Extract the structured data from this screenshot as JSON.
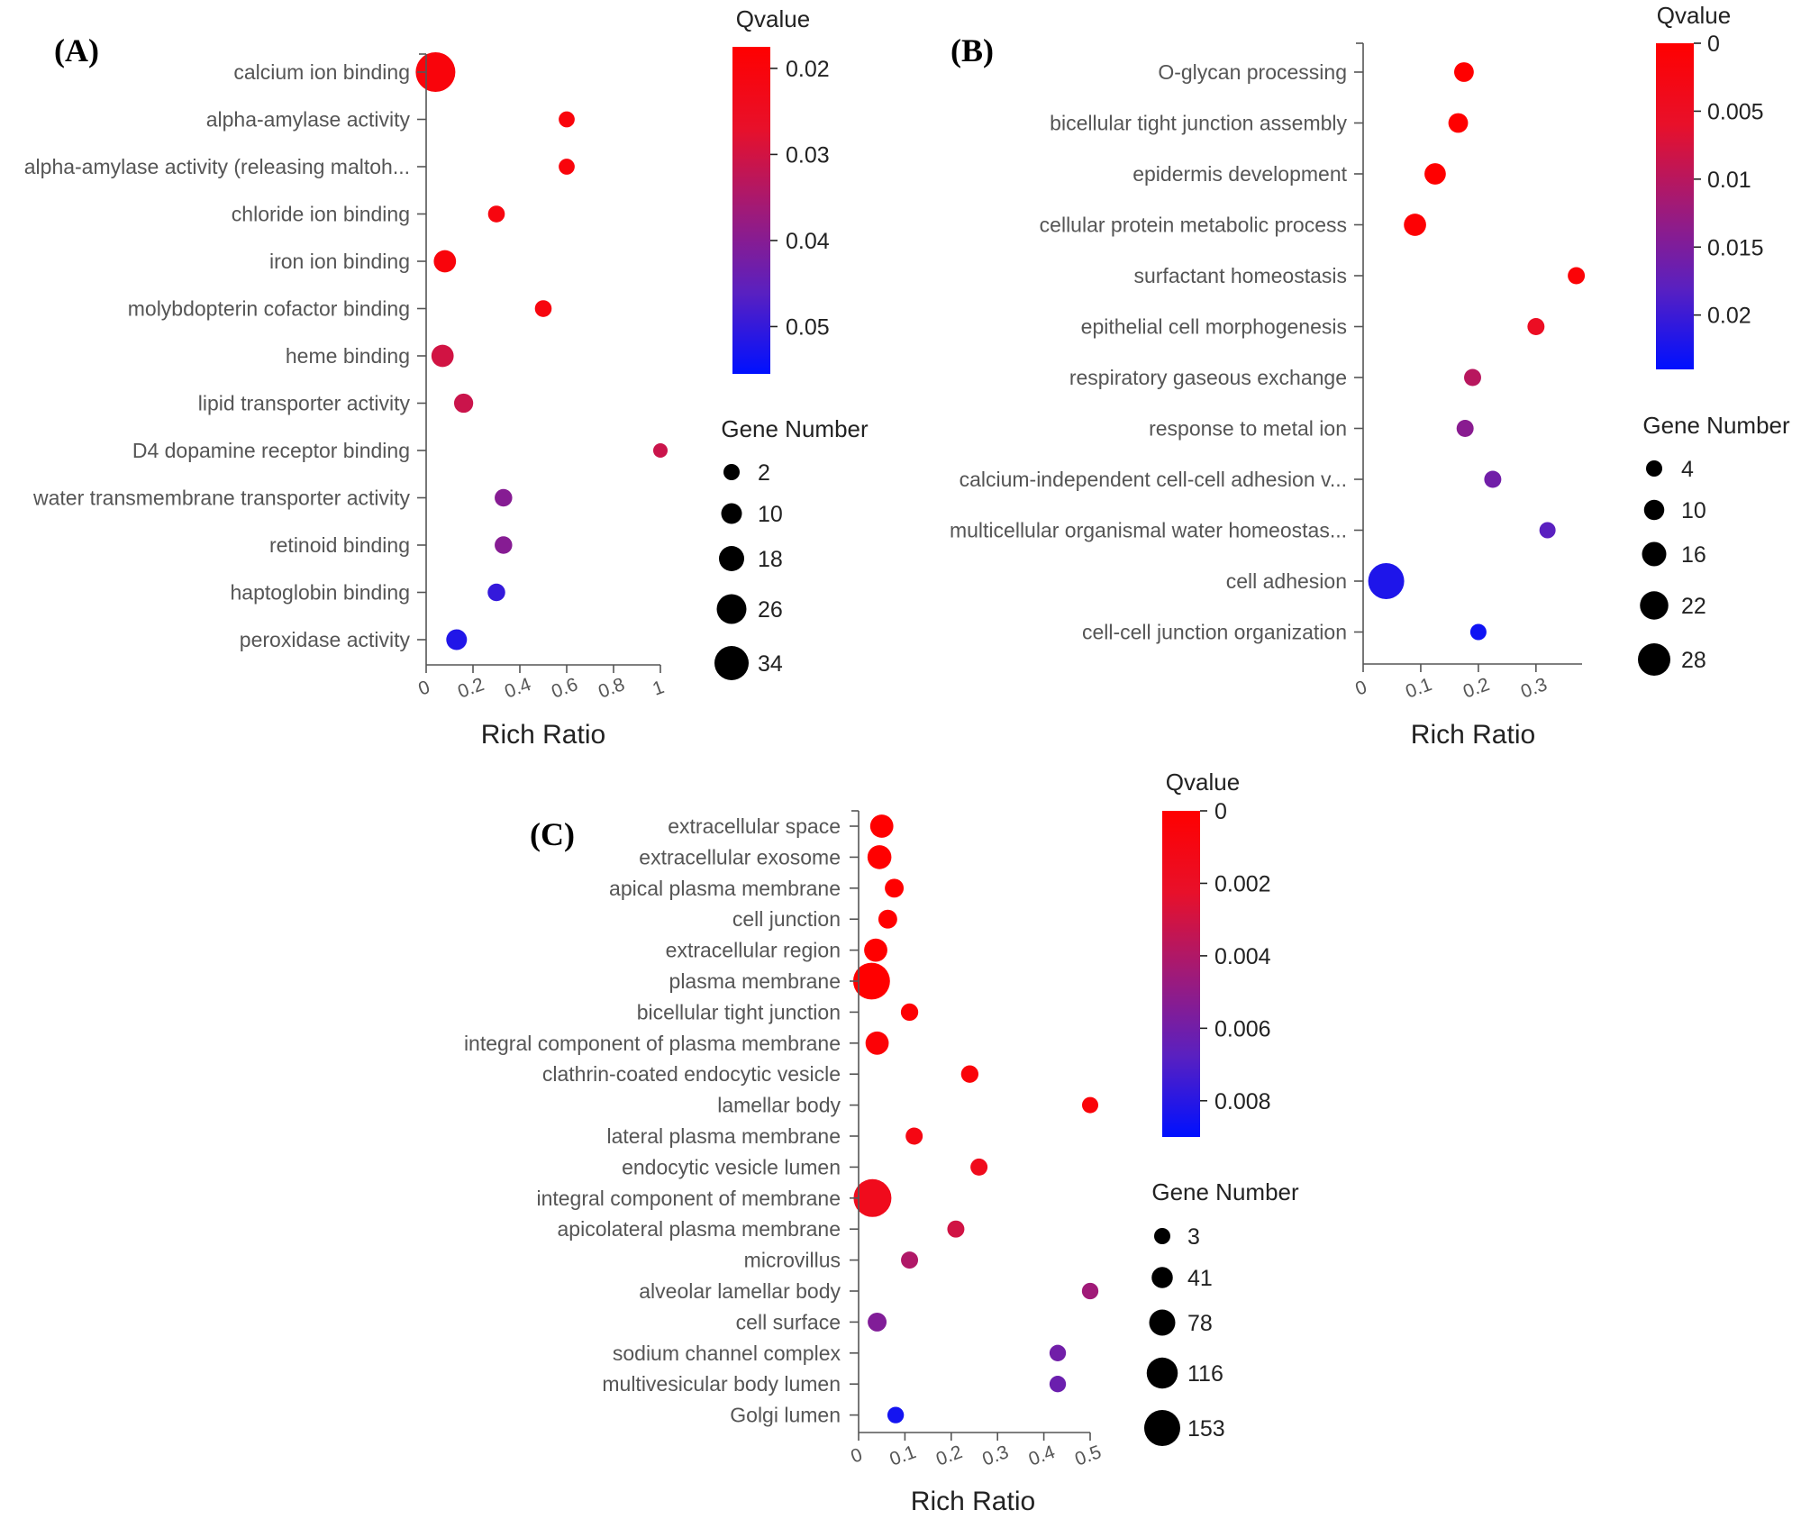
{
  "chart_data": [
    {
      "panel": "(A)",
      "type": "scatter",
      "subtype": "bubble",
      "xlabel": "Rich Ratio",
      "xlim": [
        0,
        1
      ],
      "xticks": [
        "0",
        "0.2",
        "0.4",
        "0.6",
        "0.8",
        "1"
      ],
      "categories": [
        "calcium ion binding",
        "alpha-amylase activity",
        "alpha-amylase activity (releasing maltoh...",
        "chloride ion binding",
        "iron ion binding",
        "molybdopterin cofactor binding",
        "heme binding",
        "lipid transporter activity",
        "D4 dopamine receptor binding",
        "water transmembrane transporter activity",
        "retinoid binding",
        "haptoglobin binding",
        "peroxidase activity"
      ],
      "rich_ratio": [
        0.04,
        0.6,
        0.6,
        0.3,
        0.08,
        0.5,
        0.07,
        0.16,
        1.0,
        0.33,
        0.33,
        0.3,
        0.13
      ],
      "gene_number": [
        34,
        4,
        4,
        5,
        12,
        5,
        12,
        8,
        2,
        6,
        6,
        6,
        10
      ],
      "qvalue": [
        0.02,
        0.02,
        0.02,
        0.021,
        0.02,
        0.021,
        0.03,
        0.031,
        0.031,
        0.04,
        0.04,
        0.05,
        0.052
      ],
      "color_legend": {
        "title": "Qvalue",
        "ticks": [
          "0.02",
          "0.03",
          "0.04",
          "0.05"
        ],
        "range": [
          0.0175,
          0.0555
        ],
        "high_color": "#ff0000",
        "low_color": "#0000ff"
      },
      "size_legend": {
        "title": "Gene Number",
        "ticks": [
          "2",
          "10",
          "18",
          "26",
          "34"
        ]
      }
    },
    {
      "panel": "(B)",
      "type": "scatter",
      "subtype": "bubble",
      "xlabel": "Rich Ratio",
      "xlim": [
        0,
        0.38
      ],
      "xticks": [
        "0",
        "0.1",
        "0.2",
        "0.3"
      ],
      "categories": [
        "O-glycan processing",
        "bicellular tight junction assembly",
        "epidermis development",
        "cellular protein metabolic process",
        "surfactant homeostasis",
        "epithelial cell morphogenesis",
        "respiratory gaseous exchange",
        "response to metal ion",
        "calcium-independent cell-cell adhesion v...",
        "multicellular organismal water homeostas...",
        "cell adhesion",
        "cell-cell junction organization"
      ],
      "rich_ratio": [
        0.175,
        0.165,
        0.125,
        0.09,
        0.37,
        0.3,
        0.19,
        0.177,
        0.225,
        0.32,
        0.04,
        0.2
      ],
      "gene_number": [
        9,
        9,
        11,
        12,
        6,
        6,
        6,
        6,
        6,
        5,
        28,
        5
      ],
      "qvalue": [
        0,
        0,
        0,
        0.0005,
        0.001,
        0.005,
        0.01,
        0.014,
        0.016,
        0.018,
        0.022,
        0.023
      ],
      "color_legend": {
        "title": "Qvalue",
        "ticks": [
          "0",
          "0.005",
          "0.01",
          "0.015",
          "0.02"
        ],
        "range": [
          0,
          0.024
        ],
        "high_color": "#ff0000",
        "low_color": "#0000ff"
      },
      "size_legend": {
        "title": "Gene Number",
        "ticks": [
          "4",
          "10",
          "16",
          "22",
          "28"
        ]
      }
    },
    {
      "panel": "(C)",
      "type": "scatter",
      "subtype": "bubble",
      "xlabel": "Rich Ratio",
      "xlim": [
        0,
        0.5
      ],
      "xticks": [
        "0",
        "0.1",
        "0.2",
        "0.3",
        "0.4",
        "0.5"
      ],
      "categories": [
        "extracellular space",
        "extracellular exosome",
        "apical plasma membrane",
        "cell junction",
        "extracellular region",
        "plasma membrane",
        "bicellular tight junction",
        "integral component of plasma membrane",
        "clathrin-coated endocytic vesicle",
        "lamellar body",
        "lateral plasma membrane",
        "endocytic vesicle lumen",
        "integral component of membrane",
        "apicolateral plasma membrane",
        "microvillus",
        "alveolar lamellar body",
        "cell surface",
        "sodium channel complex",
        "multivesicular body lumen",
        "Golgi lumen"
      ],
      "rich_ratio": [
        0.05,
        0.045,
        0.077,
        0.063,
        0.037,
        0.028,
        0.11,
        0.04,
        0.24,
        0.5,
        0.12,
        0.26,
        0.03,
        0.21,
        0.11,
        0.5,
        0.04,
        0.43,
        0.43,
        0.08
      ],
      "gene_number": [
        60,
        65,
        30,
        30,
        60,
        153,
        20,
        60,
        20,
        12,
        18,
        18,
        160,
        18,
        18,
        14,
        30,
        14,
        14,
        14
      ],
      "qvalue": [
        0,
        0,
        0,
        0,
        0,
        0,
        0.0002,
        0.0003,
        0.0005,
        0.0005,
        0.001,
        0.0015,
        0.0015,
        0.003,
        0.004,
        0.0045,
        0.0055,
        0.006,
        0.0062,
        0.0085
      ],
      "color_legend": {
        "title": "Qvalue",
        "ticks": [
          "0",
          "0.002",
          "0.004",
          "0.006",
          "0.008"
        ],
        "range": [
          0,
          0.009
        ],
        "high_color": "#ff0000",
        "low_color": "#0000ff"
      },
      "size_legend": {
        "title": "Gene Number",
        "ticks": [
          "3",
          "41",
          "78",
          "116",
          "153"
        ]
      }
    }
  ]
}
